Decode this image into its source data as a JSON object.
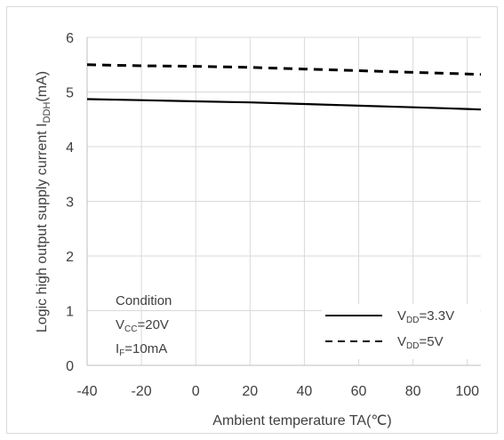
{
  "chart_data": {
    "type": "line",
    "title": "",
    "xlabel": "Ambient temperature TA(℃)",
    "ylabel": {
      "main": "Logic high output supply current I",
      "sub": "DDH",
      "unit": "(mA)"
    },
    "xlim": [
      -40,
      105
    ],
    "ylim": [
      0,
      6
    ],
    "xticks": [
      -40,
      -20,
      0,
      20,
      40,
      60,
      80,
      100
    ],
    "yticks": [
      0,
      1,
      2,
      3,
      4,
      5,
      6
    ],
    "grid": "on",
    "legend_position": "bottom-right",
    "series": [
      {
        "name": "VDD=3.3V",
        "label_main": "V",
        "label_sub": "DD",
        "label_rest": "=3.3V",
        "style": "solid",
        "color": "#000000",
        "x": [
          -40,
          -20,
          0,
          20,
          40,
          60,
          80,
          100,
          105
        ],
        "y": [
          4.87,
          4.85,
          4.83,
          4.81,
          4.78,
          4.75,
          4.72,
          4.69,
          4.68
        ]
      },
      {
        "name": "VDD=5V",
        "label_main": "V",
        "label_sub": "DD",
        "label_rest": "=5V",
        "style": "dashed",
        "color": "#000000",
        "x": [
          -40,
          -20,
          0,
          20,
          40,
          60,
          80,
          100,
          105
        ],
        "y": [
          5.5,
          5.48,
          5.47,
          5.45,
          5.42,
          5.39,
          5.36,
          5.33,
          5.32
        ]
      }
    ],
    "annotation": {
      "title": "Condition",
      "line1": {
        "main": "V",
        "sub": "CC",
        "rest": "=20V"
      },
      "line2": {
        "main": "I",
        "sub": "F",
        "rest": "=10mA"
      }
    }
  }
}
